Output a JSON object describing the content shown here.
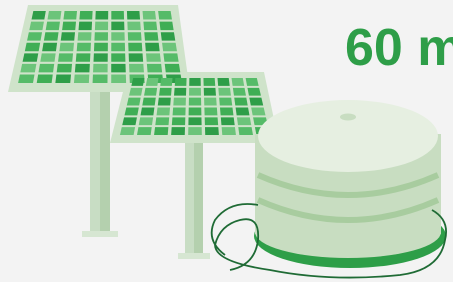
{
  "headline": "60 m"
}
